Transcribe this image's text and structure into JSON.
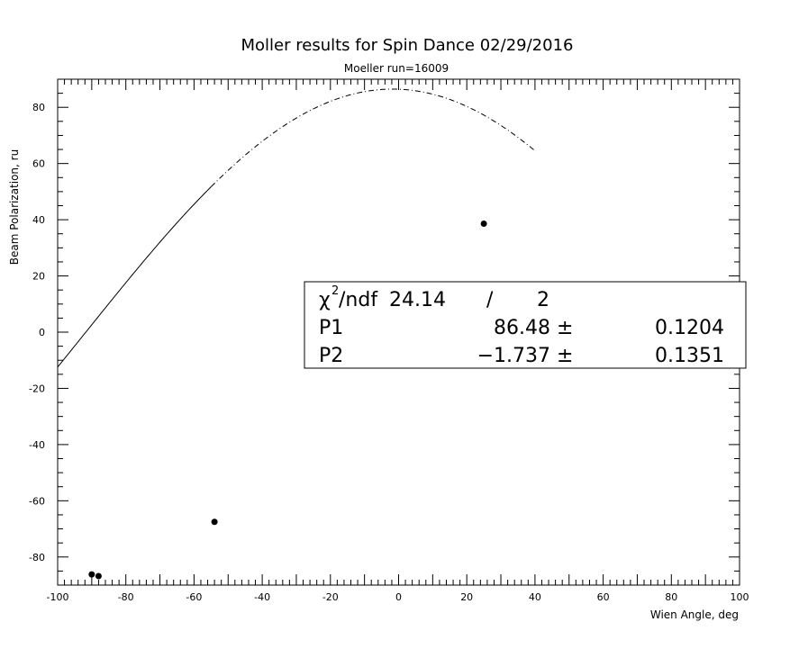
{
  "chart_data": {
    "type": "scatter",
    "title": "Moller results for Spin Dance 02/29/2016",
    "subtitle": "Moeller run=16009",
    "xlabel": "Wien Angle, deg",
    "ylabel": "Beam Polarization, ru",
    "xlim": [
      -100,
      100
    ],
    "ylim": [
      -90,
      90
    ],
    "x_ticks": [
      -100,
      -80,
      -60,
      -40,
      -20,
      0,
      20,
      40,
      60,
      80,
      100
    ],
    "y_ticks": [
      -80,
      -60,
      -40,
      -20,
      0,
      20,
      40,
      60,
      80
    ],
    "grid": false,
    "series": [
      {
        "points": [
          {
            "x": -90.0,
            "y": -86.2
          },
          {
            "x": -88.0,
            "y": -86.8
          },
          {
            "x": -54.0,
            "y": -67.5
          },
          {
            "x": 25.0,
            "y": 38.6
          }
        ]
      }
    ],
    "fit": {
      "function": "P1*cos((x - P2) deg)",
      "P1": 86.48,
      "P2": -1.737,
      "solid_range": [
        -100,
        -55
      ],
      "dashed_range": [
        -55,
        40
      ]
    },
    "stats_box": {
      "chi2_label": "/ndf",
      "chi2_value": "24.14",
      "slash": "/",
      "ndf": "2",
      "rows": [
        {
          "name": "P1",
          "value": "86.48",
          "pm": "±",
          "error": "0.1204"
        },
        {
          "name": "P2",
          "value": "−1.737",
          "pm": "±",
          "error": "0.1351"
        }
      ]
    }
  }
}
